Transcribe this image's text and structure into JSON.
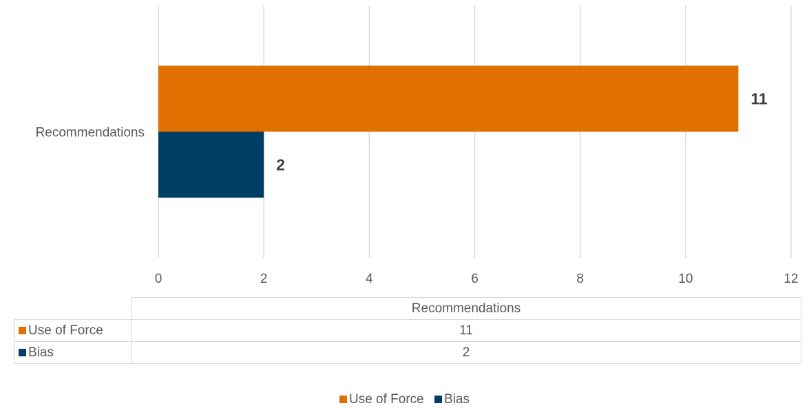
{
  "chart_data": {
    "type": "bar",
    "orientation": "horizontal",
    "categories": [
      "Recommendations"
    ],
    "series": [
      {
        "name": "Use of Force",
        "values": [
          11
        ],
        "color": "#E07000"
      },
      {
        "name": "Bias",
        "values": [
          2
        ],
        "color": "#003F63"
      }
    ],
    "xlim": [
      0,
      12
    ],
    "x_ticks": [
      0,
      2,
      4,
      6,
      8,
      10,
      12
    ],
    "grid": "vertical",
    "data_labels": true,
    "data_table": true,
    "legend": "bottom"
  },
  "table": {
    "header": "Recommendations",
    "rows": [
      {
        "name": "Use of Force",
        "value": "11",
        "color": "#E07000"
      },
      {
        "name": "Bias",
        "value": "2",
        "color": "#003F63"
      }
    ]
  },
  "legend": {
    "items": [
      {
        "name": "Use of Force",
        "color": "#E07000"
      },
      {
        "name": "Bias",
        "color": "#003F63"
      }
    ]
  }
}
